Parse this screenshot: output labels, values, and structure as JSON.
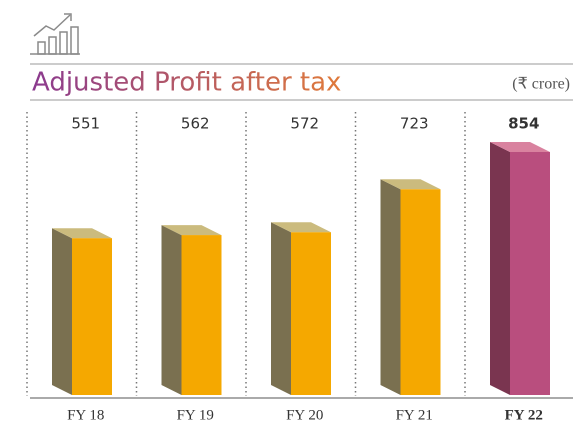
{
  "chart_data": {
    "type": "bar3d",
    "title": "Adjusted Profit after tax",
    "subtitle": "(₹ crore)",
    "categories": [
      "FY 18",
      "FY 19",
      "FY 20",
      "FY 21",
      "FY 22"
    ],
    "values": [
      551,
      562,
      572,
      723,
      854
    ],
    "colors": [
      "#f5a800",
      "#f5a800",
      "#f5a800",
      "#f5a800",
      "#b94e7e"
    ]
  }
}
